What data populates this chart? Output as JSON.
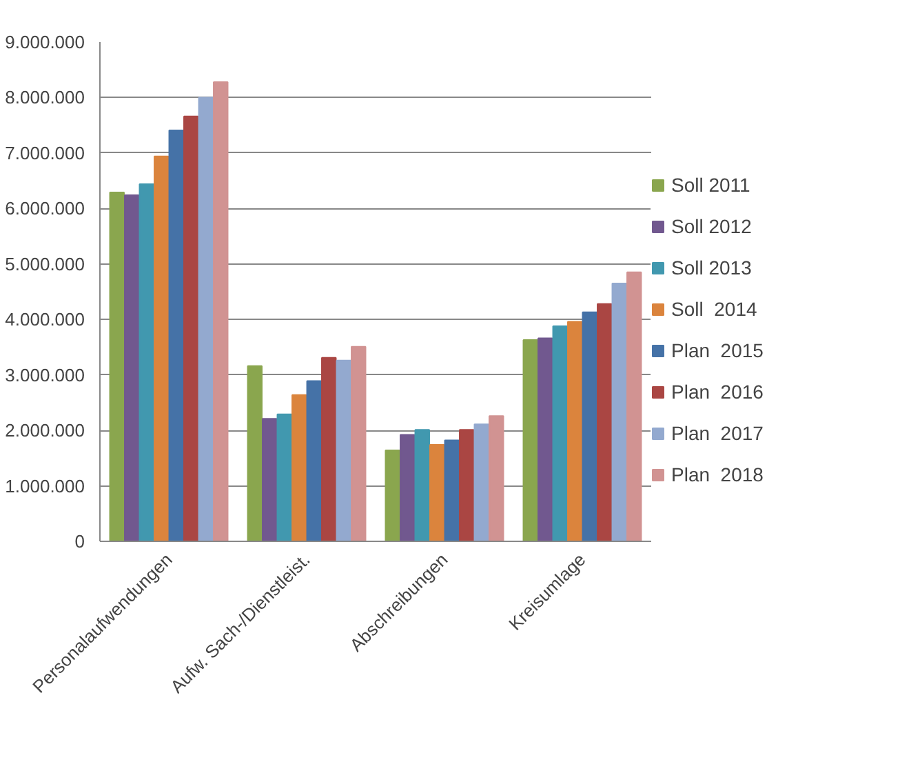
{
  "chart_data": {
    "type": "bar",
    "categories": [
      "Personalaufwendungen",
      "Aufw. Sach-/Dienstleist.",
      "Abschreibungen",
      "Kreisumlage"
    ],
    "series": [
      {
        "name": "Soll 2011",
        "color": "#8aa64e",
        "values": [
          6290000,
          3160000,
          1640000,
          3630000
        ]
      },
      {
        "name": "Soll 2012",
        "color": "#71588f",
        "values": [
          6240000,
          2210000,
          1920000,
          3660000
        ]
      },
      {
        "name": "Soll 2013",
        "color": "#4198af",
        "values": [
          6440000,
          2290000,
          2010000,
          3880000
        ]
      },
      {
        "name": "Soll  2014",
        "color": "#db843d",
        "values": [
          6940000,
          2640000,
          1740000,
          3960000
        ]
      },
      {
        "name": "Plan  2015",
        "color": "#4572a7",
        "values": [
          7410000,
          2890000,
          1820000,
          4130000
        ]
      },
      {
        "name": "Plan  2016",
        "color": "#aa4643",
        "values": [
          7660000,
          3310000,
          2010000,
          4280000
        ]
      },
      {
        "name": "Plan  2017",
        "color": "#93a9cf",
        "values": [
          8000000,
          3260000,
          2110000,
          4650000
        ]
      },
      {
        "name": "Plan  2018",
        "color": "#d19392",
        "values": [
          8280000,
          3510000,
          2260000,
          4850000
        ]
      }
    ],
    "ylim": [
      0,
      9000000
    ],
    "yticks": [
      {
        "value": 0,
        "label": "0"
      },
      {
        "value": 1000000,
        "label": "1.000.000"
      },
      {
        "value": 2000000,
        "label": "2.000.000"
      },
      {
        "value": 3000000,
        "label": "3.000.000"
      },
      {
        "value": 4000000,
        "label": "4.000.000"
      },
      {
        "value": 5000000,
        "label": "5.000.000"
      },
      {
        "value": 6000000,
        "label": "6.000.000"
      },
      {
        "value": 7000000,
        "label": "7.000.000"
      },
      {
        "value": 8000000,
        "label": "8.000.000"
      },
      {
        "value": 9000000,
        "label": "9.000.000"
      }
    ],
    "grid": "y",
    "legend": "right"
  }
}
